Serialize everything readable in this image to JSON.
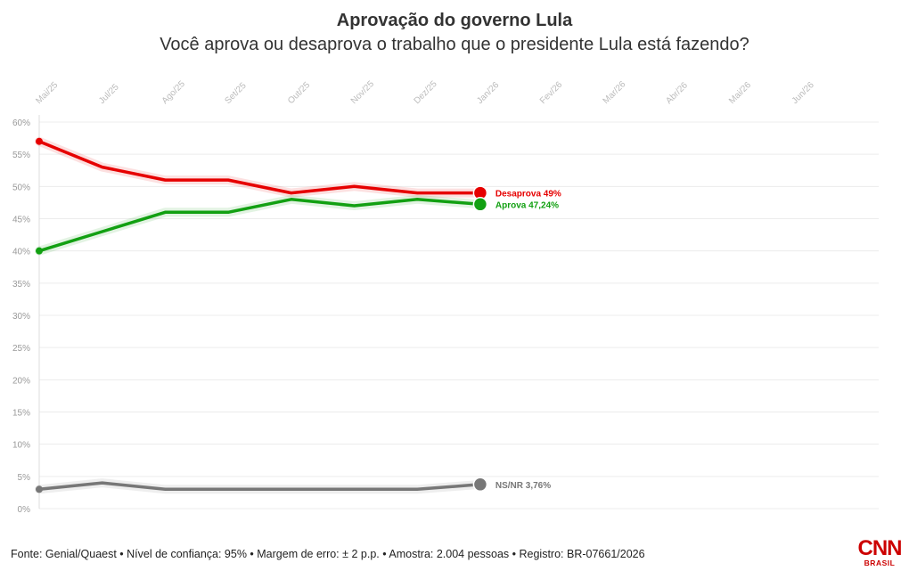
{
  "title": "Aprovação do governo Lula",
  "subtitle": "Você aprova ou desaprova o trabalho que o presidente Lula está fazendo?",
  "footer": "Fonte: Genial/Quaest • Nível de confiança: 95% • Margem de erro: ± 2 p.p. • Amostra: 2.004 pessoas • Registro: BR-07661/2026",
  "logo": {
    "text": "CNN",
    "sub": "BRASIL",
    "color": "#cc0000"
  },
  "chart_data": {
    "type": "line",
    "x_ticks": [
      "Mai/25",
      "Jul/25",
      "Ago/25",
      "Set/25",
      "Out/25",
      "Nov/25",
      "Dez/25",
      "Jan/26",
      "Fev/26",
      "Mar/26",
      "Abr/26",
      "Mai/26",
      "Jun/26"
    ],
    "y_ticks": [
      "0%",
      "5%",
      "10%",
      "15%",
      "20%",
      "25%",
      "30%",
      "35%",
      "40%",
      "45%",
      "50%",
      "55%",
      "60%"
    ],
    "ylim": [
      0,
      60
    ],
    "grid": true,
    "series": [
      {
        "name": "Desaprova",
        "end_label": "Desaprova 49%",
        "color": "#e60000",
        "x": [
          "Mai/25",
          "Jul/25",
          "Ago/25",
          "Set/25",
          "Out/25",
          "Nov/25",
          "Dez/25",
          "Jan/26"
        ],
        "values": [
          57,
          53,
          51,
          51,
          49,
          50,
          49,
          49
        ]
      },
      {
        "name": "Aprova",
        "end_label": "Aprova 47,24%",
        "color": "#12a012",
        "x": [
          "Mai/25",
          "Jul/25",
          "Ago/25",
          "Set/25",
          "Out/25",
          "Nov/25",
          "Dez/25",
          "Jan/26"
        ],
        "values": [
          40,
          43,
          46,
          46,
          48,
          47,
          48,
          47.24
        ]
      },
      {
        "name": "NS/NR",
        "end_label": "NS/NR 3,76%",
        "color": "#777777",
        "x": [
          "Mai/25",
          "Jul/25",
          "Ago/25",
          "Set/25",
          "Out/25",
          "Nov/25",
          "Dez/25",
          "Jan/26"
        ],
        "values": [
          3,
          4,
          3,
          3,
          3,
          3,
          3,
          3.76
        ]
      }
    ]
  }
}
